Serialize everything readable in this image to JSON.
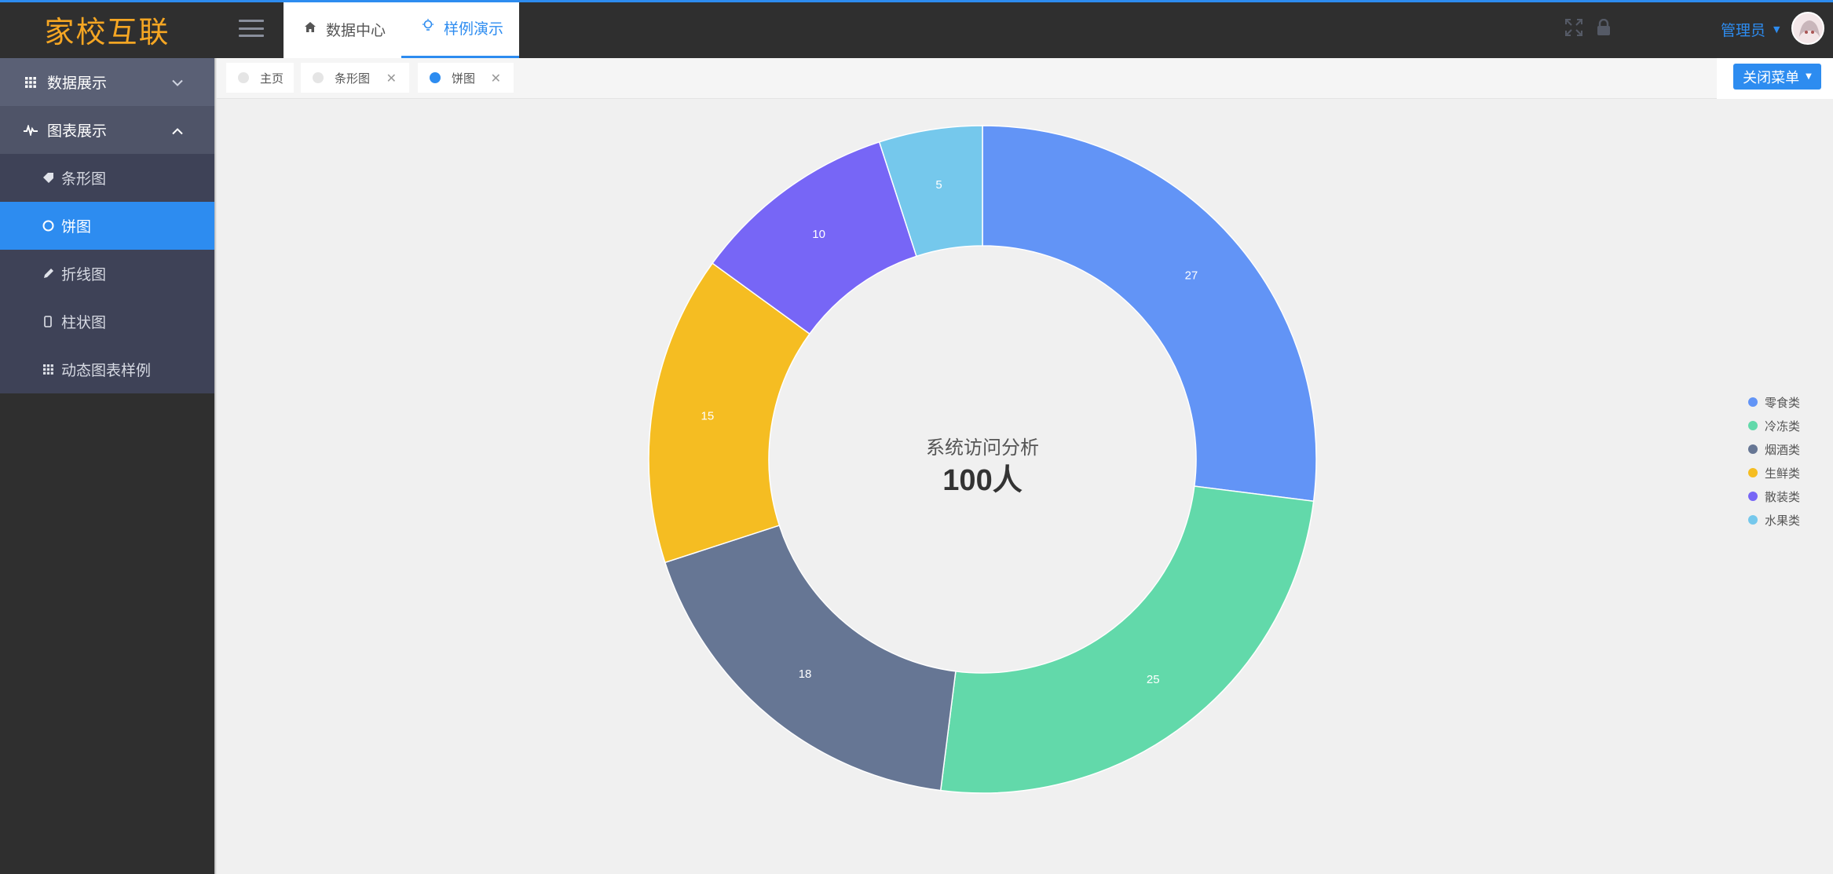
{
  "app": {
    "logo": "家校互联"
  },
  "sidebar": {
    "groups": [
      {
        "label": "数据展示",
        "icon": "grid-icon",
        "expanded": false
      },
      {
        "label": "图表展示",
        "icon": "pulse-icon",
        "expanded": true
      }
    ],
    "items": [
      {
        "label": "条形图",
        "icon": "tag-icon",
        "active": false
      },
      {
        "label": "饼图",
        "icon": "circle-icon",
        "active": true
      },
      {
        "label": "折线图",
        "icon": "pen-icon",
        "active": false
      },
      {
        "label": "柱状图",
        "icon": "phone-icon",
        "active": false
      },
      {
        "label": "动态图表样例",
        "icon": "grid-icon",
        "active": false
      }
    ]
  },
  "header": {
    "tabs": [
      {
        "label": "数据中心",
        "icon": "home-icon",
        "active": false
      },
      {
        "label": "样例演示",
        "icon": "bulb-icon",
        "active": true
      }
    ],
    "user": "管理员"
  },
  "tagbar": {
    "tags": [
      {
        "label": "主页",
        "closable": false,
        "active": false
      },
      {
        "label": "条形图",
        "closable": true,
        "active": false
      },
      {
        "label": "饼图",
        "closable": true,
        "active": true
      }
    ],
    "close_menu": "关闭菜单"
  },
  "colors": {
    "accent": "#2d8cf0",
    "logo": "#f5a623"
  },
  "chart_data": {
    "type": "pie",
    "donut": true,
    "center_title": "系统访问分析",
    "center_value": "100人",
    "legend_position": "right",
    "series": [
      {
        "name": "零食类",
        "value": 27,
        "color": "#6294f6"
      },
      {
        "name": "冷冻类",
        "value": 25,
        "color": "#62d9aa"
      },
      {
        "name": "烟酒类",
        "value": 18,
        "color": "#667694"
      },
      {
        "name": "生鲜类",
        "value": 15,
        "color": "#f5bd22"
      },
      {
        "name": "散装类",
        "value": 10,
        "color": "#7766f6"
      },
      {
        "name": "水果类",
        "value": 5,
        "color": "#75c8ec"
      }
    ]
  }
}
